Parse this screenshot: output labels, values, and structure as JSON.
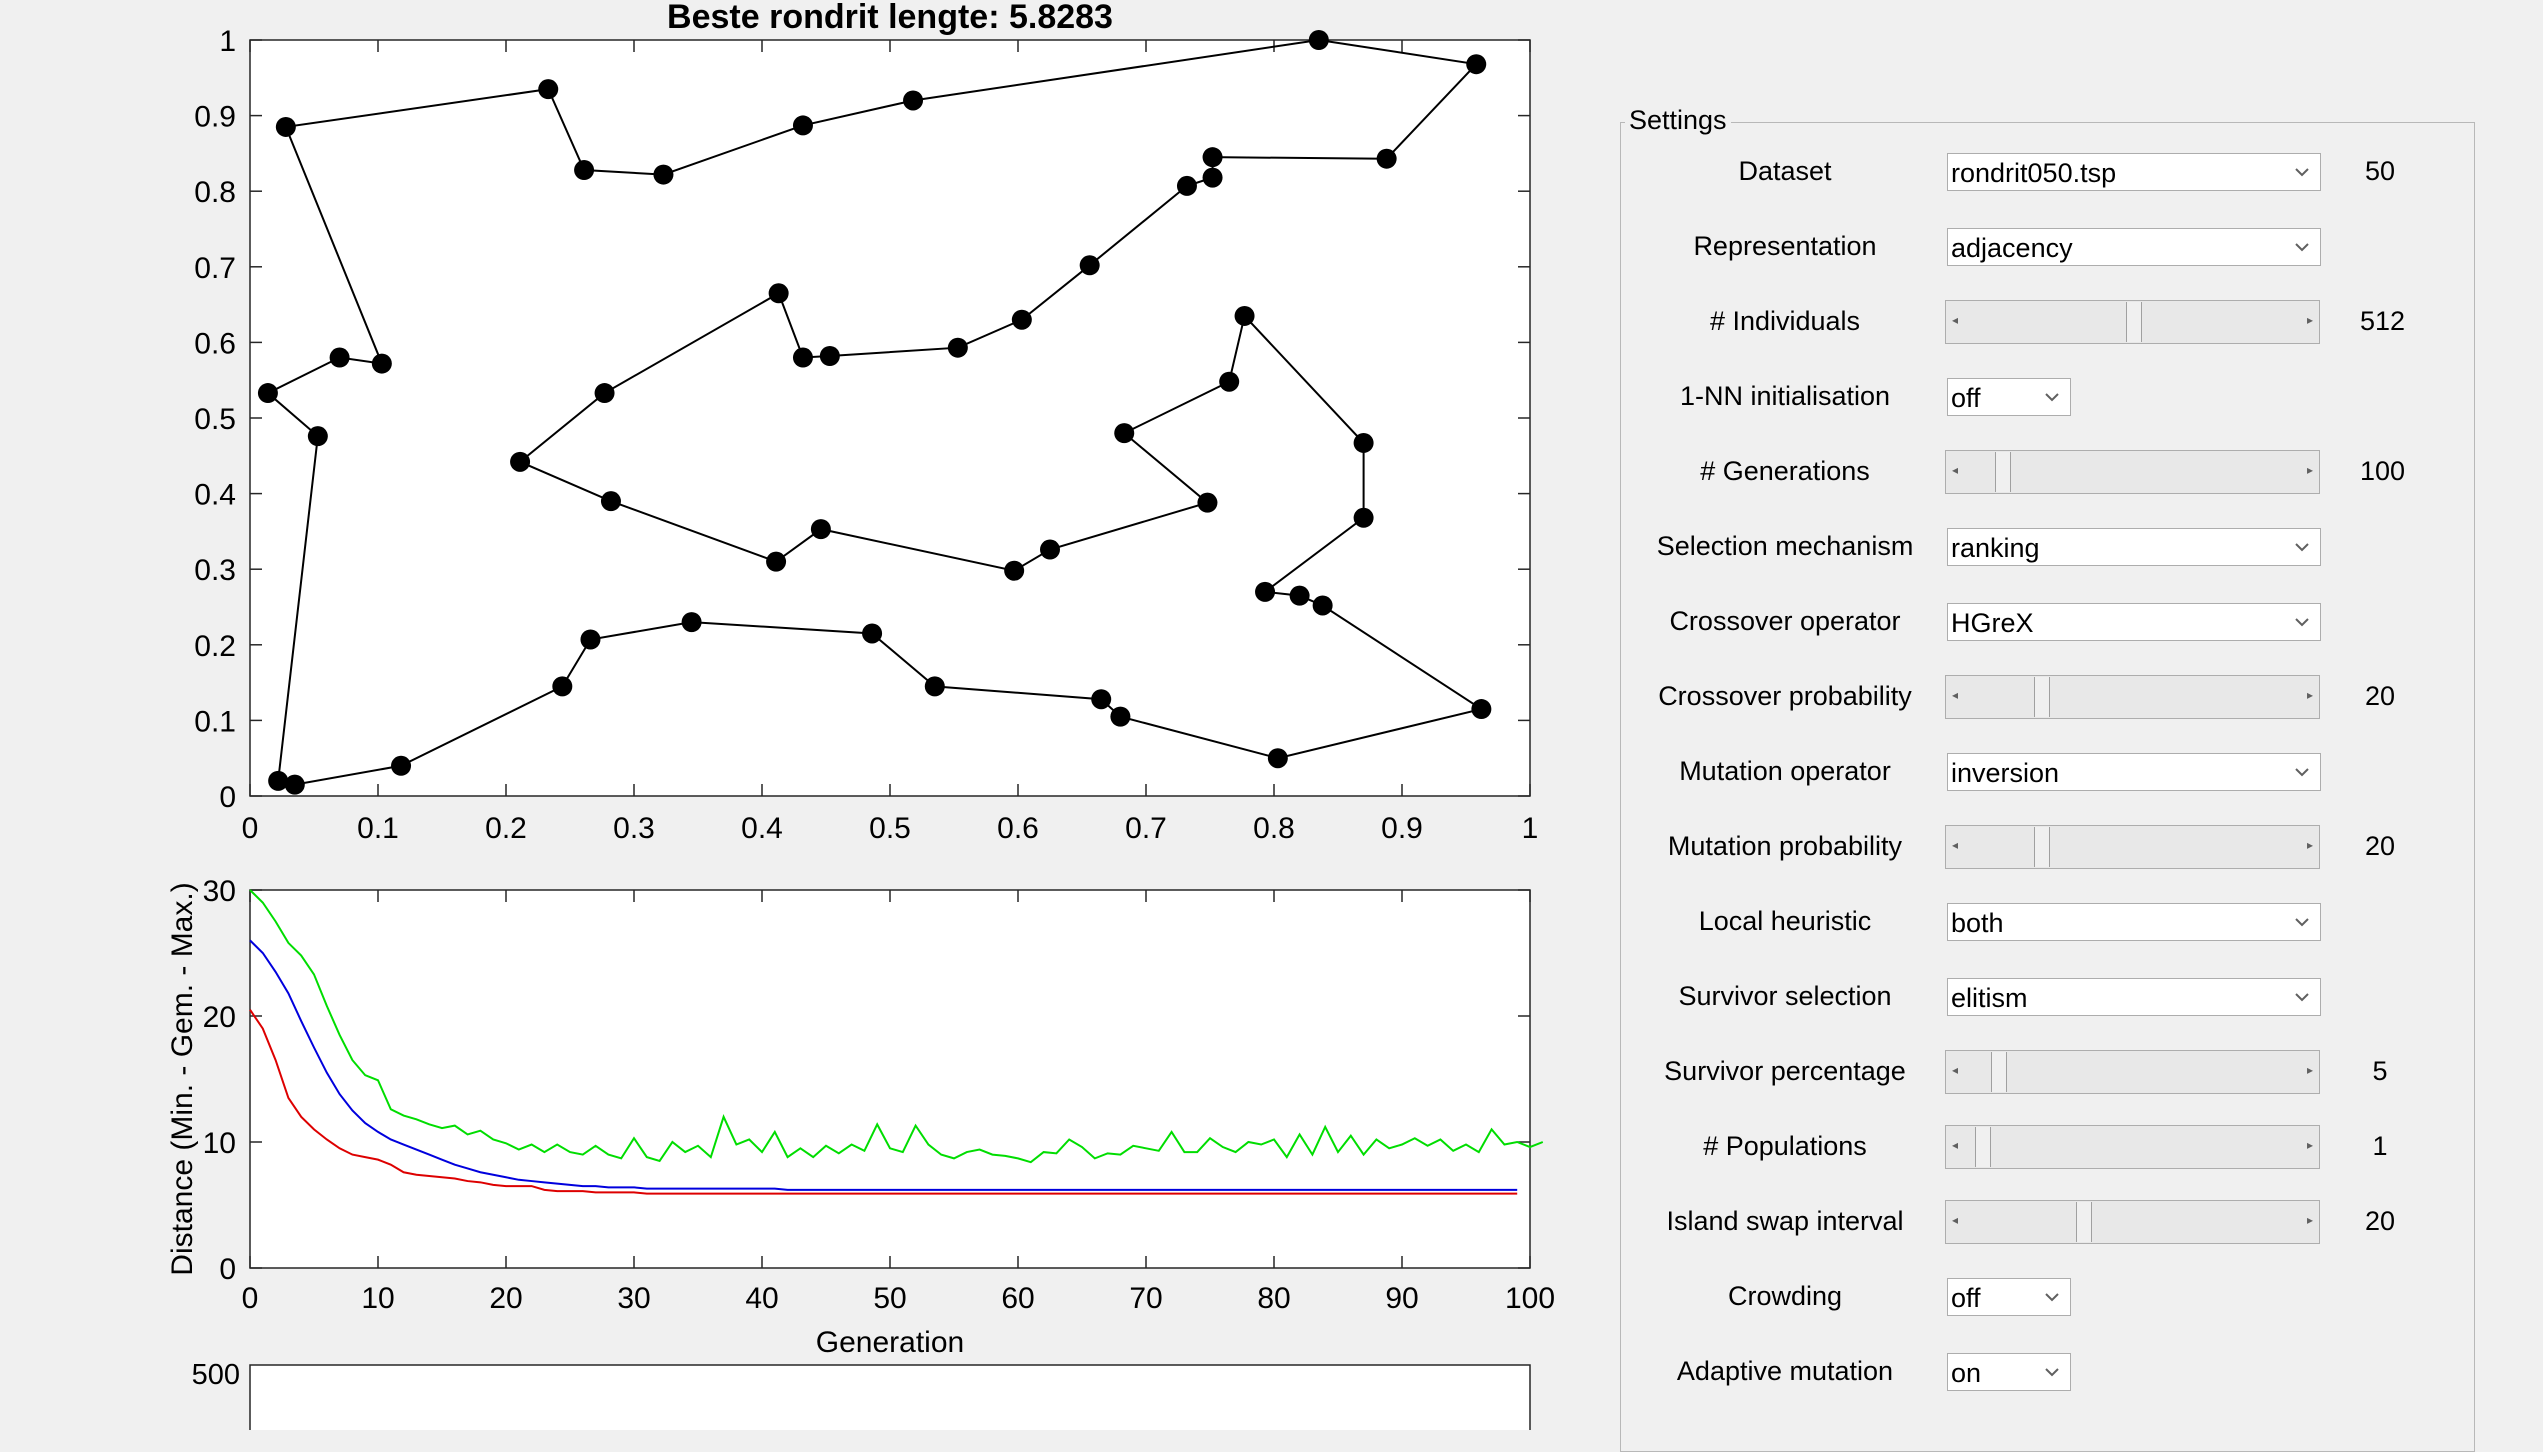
{
  "tour_plot": {
    "title": "Beste rondrit lengte: 5.8283",
    "x_ticks": [
      "0",
      "0.1",
      "0.2",
      "0.3",
      "0.4",
      "0.5",
      "0.6",
      "0.7",
      "0.8",
      "0.9",
      "1"
    ],
    "y_ticks": [
      "0",
      "0.1",
      "0.2",
      "0.3",
      "0.4",
      "0.5",
      "0.6",
      "0.7",
      "0.8",
      "0.9",
      "1"
    ],
    "xlim": [
      0,
      1
    ],
    "ylim": [
      0,
      1
    ]
  },
  "chart_data": [
    {
      "type": "scatter",
      "connected": "closed-loop",
      "xlim": [
        0,
        1
      ],
      "ylim": [
        0,
        1
      ],
      "points": [
        [
          0.835,
          1.0
        ],
        [
          0.958,
          0.968
        ],
        [
          0.888,
          0.843
        ],
        [
          0.752,
          0.845
        ],
        [
          0.752,
          0.818
        ],
        [
          0.732,
          0.807
        ],
        [
          0.656,
          0.702
        ],
        [
          0.603,
          0.63
        ],
        [
          0.553,
          0.593
        ],
        [
          0.453,
          0.582
        ],
        [
          0.432,
          0.58
        ],
        [
          0.413,
          0.665
        ],
        [
          0.277,
          0.533
        ],
        [
          0.211,
          0.442
        ],
        [
          0.282,
          0.39
        ],
        [
          0.411,
          0.31
        ],
        [
          0.446,
          0.353
        ],
        [
          0.597,
          0.298
        ],
        [
          0.625,
          0.326
        ],
        [
          0.748,
          0.388
        ],
        [
          0.683,
          0.48
        ],
        [
          0.765,
          0.548
        ],
        [
          0.777,
          0.635
        ],
        [
          0.87,
          0.467
        ],
        [
          0.87,
          0.368
        ],
        [
          0.793,
          0.27
        ],
        [
          0.82,
          0.265
        ],
        [
          0.838,
          0.252
        ],
        [
          0.962,
          0.115
        ],
        [
          0.803,
          0.05
        ],
        [
          0.68,
          0.105
        ],
        [
          0.665,
          0.128
        ],
        [
          0.535,
          0.145
        ],
        [
          0.486,
          0.215
        ],
        [
          0.345,
          0.23
        ],
        [
          0.266,
          0.207
        ],
        [
          0.244,
          0.145
        ],
        [
          0.118,
          0.04
        ],
        [
          0.035,
          0.015
        ],
        [
          0.022,
          0.02
        ],
        [
          0.053,
          0.476
        ],
        [
          0.014,
          0.533
        ],
        [
          0.07,
          0.58
        ],
        [
          0.103,
          0.572
        ],
        [
          0.028,
          0.885
        ],
        [
          0.233,
          0.935
        ],
        [
          0.261,
          0.828
        ],
        [
          0.323,
          0.822
        ],
        [
          0.432,
          0.887
        ],
        [
          0.518,
          0.92
        ]
      ]
    },
    {
      "type": "line",
      "xlabel": "Generation",
      "ylabel": "Distance (Min. - Gem. - Max.)",
      "xlim": [
        0,
        100
      ],
      "ylim": [
        0,
        30
      ],
      "x_ticks": [
        "0",
        "10",
        "20",
        "30",
        "40",
        "50",
        "60",
        "70",
        "80",
        "90",
        "100"
      ],
      "y_ticks": [
        "0",
        "10",
        "20",
        "30"
      ],
      "series": [
        {
          "color": "#00dd00",
          "values": [
            30,
            29,
            27.5,
            25.8,
            24.8,
            23.3,
            20.8,
            18.5,
            16.5,
            15.3,
            14.9,
            12.6,
            12.1,
            11.8,
            11.4,
            11.1,
            11.3,
            10.6,
            10.9,
            10.2,
            9.9,
            9.4,
            9.8,
            9.2,
            9.8,
            9.2,
            9.0,
            9.7,
            9.0,
            8.7,
            10.3,
            8.8,
            8.5,
            10.0,
            9.2,
            9.7,
            8.8,
            12.0,
            9.8,
            10.2,
            9.2,
            10.8,
            8.8,
            9.5,
            8.8,
            9.7,
            9.1,
            9.8,
            9.3,
            11.4,
            9.5,
            9.2,
            11.3,
            9.8,
            9.0,
            8.7,
            9.2,
            9.4,
            9.0,
            8.9,
            8.7,
            8.4,
            9.2,
            9.1,
            10.2,
            9.6,
            8.7,
            9.1,
            9.0,
            9.7,
            9.5,
            9.3,
            10.8,
            9.2,
            9.2,
            10.3,
            9.6,
            9.2,
            10.0,
            9.8,
            10.2,
            8.8,
            10.6,
            9.0,
            11.2,
            9.2,
            10.5,
            9.0,
            10.2,
            9.5,
            9.8,
            10.3,
            9.7,
            10.2,
            9.3,
            9.8,
            9.2,
            11.0,
            9.8,
            10.0,
            9.6,
            10.0
          ]
        },
        {
          "color": "#0000dd",
          "values": [
            26,
            25,
            23.5,
            21.8,
            19.6,
            17.5,
            15.5,
            13.8,
            12.5,
            11.5,
            10.8,
            10.2,
            9.8,
            9.4,
            9.0,
            8.6,
            8.2,
            7.9,
            7.6,
            7.4,
            7.2,
            7.0,
            6.9,
            6.8,
            6.7,
            6.6,
            6.5,
            6.5,
            6.4,
            6.4,
            6.4,
            6.3,
            6.3,
            6.3,
            6.3,
            6.3,
            6.3,
            6.3,
            6.3,
            6.3,
            6.3,
            6.3,
            6.2,
            6.2,
            6.2,
            6.2,
            6.2,
            6.2,
            6.2,
            6.2,
            6.2,
            6.2,
            6.2,
            6.2,
            6.2,
            6.2,
            6.2,
            6.2,
            6.2,
            6.2,
            6.2,
            6.2,
            6.2,
            6.2,
            6.2,
            6.2,
            6.2,
            6.2,
            6.2,
            6.2,
            6.2,
            6.2,
            6.2,
            6.2,
            6.2,
            6.2,
            6.2,
            6.2,
            6.2,
            6.2,
            6.2,
            6.2,
            6.2,
            6.2,
            6.2,
            6.2,
            6.2,
            6.2,
            6.2,
            6.2,
            6.2,
            6.2,
            6.2,
            6.2,
            6.2,
            6.2,
            6.2,
            6.2,
            6.2,
            6.2
          ]
        },
        {
          "color": "#dd0000",
          "values": [
            20.5,
            19,
            16.5,
            13.5,
            12.0,
            11.0,
            10.2,
            9.5,
            9.0,
            8.8,
            8.6,
            8.2,
            7.6,
            7.4,
            7.3,
            7.2,
            7.1,
            6.9,
            6.8,
            6.6,
            6.5,
            6.5,
            6.5,
            6.2,
            6.1,
            6.1,
            6.1,
            6.0,
            6.0,
            6.0,
            6.0,
            5.9,
            5.9,
            5.9,
            5.9,
            5.9,
            5.9,
            5.9,
            5.9,
            5.9,
            5.9,
            5.9,
            5.9,
            5.9,
            5.9,
            5.9,
            5.9,
            5.9,
            5.9,
            5.9,
            5.9,
            5.9,
            5.9,
            5.9,
            5.9,
            5.9,
            5.9,
            5.9,
            5.9,
            5.9,
            5.9,
            5.9,
            5.9,
            5.9,
            5.9,
            5.9,
            5.9,
            5.9,
            5.9,
            5.9,
            5.9,
            5.9,
            5.9,
            5.9,
            5.9,
            5.9,
            5.9,
            5.9,
            5.9,
            5.9,
            5.9,
            5.9,
            5.9,
            5.9,
            5.9,
            5.9,
            5.9,
            5.9,
            5.9,
            5.9,
            5.9,
            5.9,
            5.9,
            5.9,
            5.9,
            5.9,
            5.9,
            5.9,
            5.9,
            5.9
          ]
        }
      ]
    },
    {
      "type": "line",
      "y_ticks": [
        "500"
      ]
    }
  ],
  "settings": {
    "title": "Settings",
    "rows": [
      {
        "label": "Dataset",
        "kind": "dropdown",
        "value": "rondrit050.tsp",
        "count": "50"
      },
      {
        "label": "Representation",
        "kind": "dropdown",
        "value": "adjacency"
      },
      {
        "label": "# Individuals",
        "kind": "slider",
        "thumb": 0.5,
        "count": "512"
      },
      {
        "label": "1-NN initialisation",
        "kind": "small",
        "value": "off"
      },
      {
        "label": "# Generations",
        "kind": "slider",
        "thumb": 0.1,
        "count": "100"
      },
      {
        "label": "Selection mechanism",
        "kind": "dropdown",
        "value": "ranking"
      },
      {
        "label": "Crossover operator",
        "kind": "dropdown",
        "value": "HGreX"
      },
      {
        "label": "Crossover probability",
        "kind": "slider",
        "thumb": 0.22,
        "count": "20"
      },
      {
        "label": "Mutation operator",
        "kind": "dropdown",
        "value": "inversion"
      },
      {
        "label": "Mutation probability",
        "kind": "slider",
        "thumb": 0.22,
        "count": "20"
      },
      {
        "label": "Local heuristic",
        "kind": "dropdown",
        "value": "both"
      },
      {
        "label": "Survivor selection",
        "kind": "dropdown",
        "value": "elitism"
      },
      {
        "label": "Survivor percentage",
        "kind": "slider",
        "thumb": 0.09,
        "count": "5"
      },
      {
        "label": "# Populations",
        "kind": "slider",
        "thumb": 0.04,
        "count": "1"
      },
      {
        "label": "Island swap interval",
        "kind": "slider",
        "thumb": 0.35,
        "count": "20"
      },
      {
        "label": "Crowding",
        "kind": "small",
        "value": "off"
      },
      {
        "label": "Adaptive mutation",
        "kind": "small",
        "value": "on"
      }
    ]
  }
}
